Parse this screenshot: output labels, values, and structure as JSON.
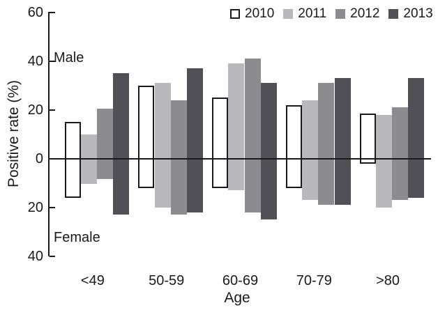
{
  "chart_data": {
    "type": "bar",
    "variant": "diverging-grouped-vertical",
    "title": "",
    "xlabel": "Age",
    "ylabel": "Positive rate (%)",
    "upper_region_label": "Male",
    "lower_region_label": "Female",
    "categories": [
      "<49",
      "50-59",
      "60-69",
      "70-79",
      ">80"
    ],
    "y_axis": {
      "unit": "%",
      "ticks": [
        {
          "label": "60",
          "value": 60
        },
        {
          "label": "40",
          "value": 40
        },
        {
          "label": "20",
          "value": 20
        },
        {
          "label": "0",
          "value": 0
        },
        {
          "label": "20",
          "value": -20
        },
        {
          "label": "40",
          "value": -40
        }
      ]
    },
    "legend_position": "top",
    "colors": {
      "axis": "#1a1a1a",
      "series_2010_fill": "#ffffff",
      "series_2010_border": "#1a1a1a",
      "series_2011_fill": "#b9b9bd",
      "series_2012_fill": "#8b8b90",
      "series_2013_fill": "#505056"
    },
    "series": [
      {
        "name": "2010",
        "fill": "#ffffff",
        "border": "#1a1a1a",
        "male": [
          15,
          30,
          25,
          22,
          18.5
        ],
        "female": [
          16,
          12,
          12,
          12,
          2
        ]
      },
      {
        "name": "2011",
        "fill": "#b9b9bd",
        "border": null,
        "male": [
          10,
          31,
          39,
          24,
          18
        ],
        "female": [
          10.5,
          20,
          13,
          17,
          20
        ]
      },
      {
        "name": "2012",
        "fill": "#8b8b90",
        "border": null,
        "male": [
          20.5,
          24,
          41,
          31,
          21
        ],
        "female": [
          8.5,
          23,
          22,
          19,
          17
        ]
      },
      {
        "name": "2013",
        "fill": "#505056",
        "border": null,
        "male": [
          35,
          37,
          31,
          33,
          33
        ],
        "female": [
          23,
          22,
          25,
          19,
          16
        ]
      }
    ]
  }
}
